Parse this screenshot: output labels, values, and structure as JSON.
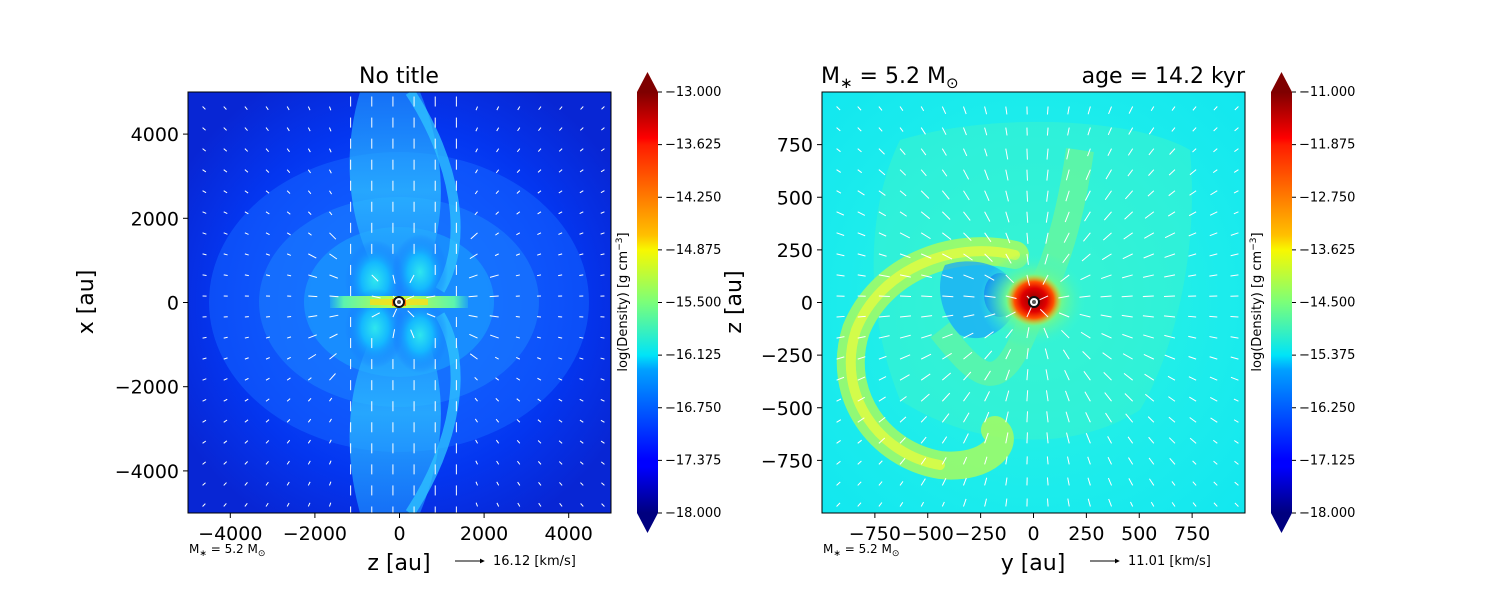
{
  "chart_data": [
    {
      "type": "heatmap",
      "title": "No title",
      "xlabel": "z [au]",
      "ylabel": "x [au]",
      "xlim": [
        -5000,
        5000
      ],
      "ylim": [
        -5000,
        5000
      ],
      "xticks": [
        -4000,
        -2000,
        0,
        2000,
        4000
      ],
      "yticks": [
        -4000,
        -2000,
        0,
        2000,
        4000
      ],
      "xtick_labels": [
        "−4000",
        "−2000",
        "0",
        "2000",
        "4000"
      ],
      "ytick_labels": [
        "−4000",
        "−2000",
        "0",
        "2000",
        "4000"
      ],
      "colorbar": {
        "label": "log(Density) [g cm$^{-3}$]",
        "label_text": "log(Density) [g cm",
        "label_sup": "−3",
        "label_end": "]",
        "min": -18.0,
        "max": -13.0,
        "tick_labels": [
          "−13.000",
          "−13.625",
          "−14.250",
          "−14.875",
          "−15.500",
          "−16.125",
          "−16.750",
          "−17.375",
          "−18.000"
        ],
        "tick_values": [
          -13.0,
          -13.625,
          -14.25,
          -14.875,
          -15.5,
          -16.125,
          -16.75,
          -17.375,
          -18.0
        ],
        "extend": "both",
        "colormap": "jet"
      },
      "field_mean_level": -17.0,
      "features": [
        {
          "name": "disk",
          "orientation": "horizontal",
          "z_extent": [
            -1600,
            1600
          ],
          "x_extent": [
            -130,
            130
          ],
          "level": -15.3
        },
        {
          "name": "bipolar-outflow",
          "orientation": "vertical",
          "level": -16.2
        }
      ],
      "sink": {
        "x": 0,
        "y": 0
      },
      "annotation": "M∗ = 5.2 M⊙",
      "annotation_main": "M",
      "annotation_sub1": "∗",
      "annotation_mid": " = 5.2 M",
      "annotation_sub2": "⊙",
      "quiver_key": "16.12 [km/s]",
      "quiver_key_value": 16.12,
      "quiver_color": "#ffffff"
    },
    {
      "type": "heatmap",
      "title": "",
      "title_left": "M∗ = 5.2 M⊙",
      "title_left_main": "M",
      "title_left_sub1": "∗",
      "title_left_mid": " = 5.2 M",
      "title_left_sub2": "⊙",
      "title_right": "age = 14.2 kyr",
      "xlabel": "y [au]",
      "ylabel": "z [au]",
      "xlim": [
        -1000,
        1000
      ],
      "ylim": [
        -1000,
        1000
      ],
      "xticks": [
        -750,
        -500,
        -250,
        0,
        250,
        500,
        750
      ],
      "yticks": [
        -750,
        -500,
        -250,
        0,
        250,
        500,
        750
      ],
      "xtick_labels": [
        "−750",
        "−500",
        "−250",
        "0",
        "250",
        "500",
        "750"
      ],
      "ytick_labels": [
        "−750",
        "−500",
        "−250",
        "0",
        "250",
        "500",
        "750"
      ],
      "colorbar": {
        "label": "log(Density) [g cm$^{-3}$]",
        "label_text": "log(Density) [g cm",
        "label_sup": "−3",
        "label_end": "]",
        "min": -18.0,
        "max": -11.0,
        "tick_labels": [
          "−11.000",
          "−11.875",
          "−12.750",
          "−13.625",
          "−14.500",
          "−15.375",
          "−16.250",
          "−17.125",
          "−18.000"
        ],
        "tick_values": [
          -11.0,
          -11.875,
          -12.75,
          -13.625,
          -14.5,
          -15.375,
          -16.25,
          -17.125,
          -18.0
        ],
        "extend": "both",
        "colormap": "jet"
      },
      "field_mean_level": -15.1,
      "features": [
        {
          "name": "spiral-arm",
          "level": -14.3
        },
        {
          "name": "central-core",
          "level": -11.5
        }
      ],
      "sink": {
        "x": 0,
        "y": 0
      },
      "annotation": "M∗ = 5.2 M⊙",
      "annotation_main": "M",
      "annotation_sub1": "∗",
      "annotation_mid": " = 5.2 M",
      "annotation_sub2": "⊙",
      "quiver_key": "11.01 [km/s]",
      "quiver_key_value": 11.01,
      "quiver_color": "#ffffff"
    }
  ]
}
